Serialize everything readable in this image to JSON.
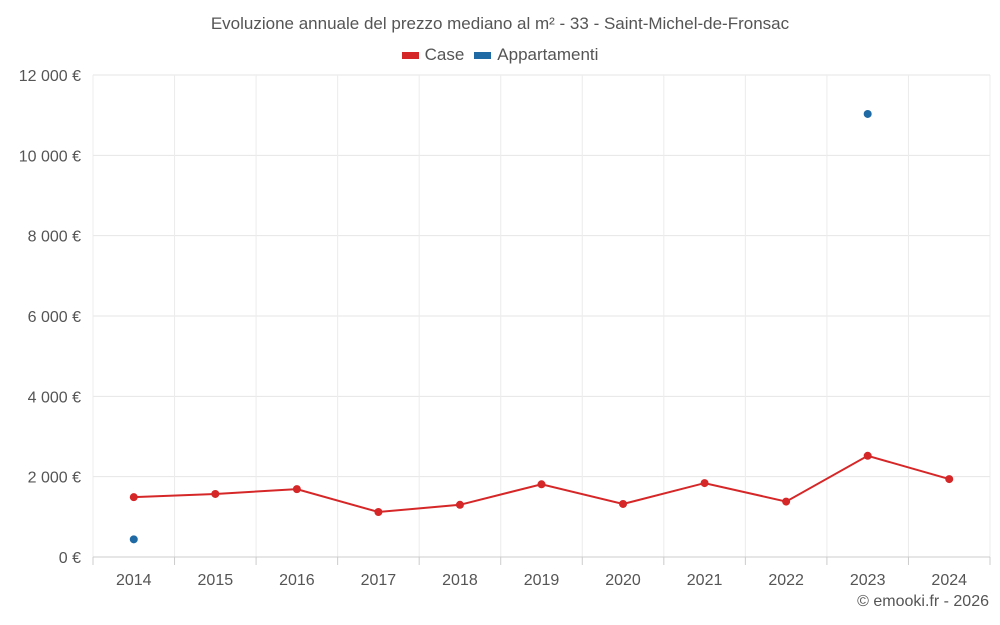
{
  "chart_data": {
    "type": "line",
    "title": "Evoluzione annuale del prezzo mediano al m² - 33 - Saint-Michel-de-Fronsac",
    "categories": [
      "2014",
      "2015",
      "2016",
      "2017",
      "2018",
      "2019",
      "2020",
      "2021",
      "2022",
      "2023",
      "2024"
    ],
    "series": [
      {
        "name": "Case",
        "color": "#d62728",
        "values": [
          1490,
          1570,
          1690,
          1120,
          1300,
          1810,
          1320,
          1840,
          1380,
          2520,
          1940
        ]
      },
      {
        "name": "Appartamenti",
        "color": "#1f6aa5",
        "values": [
          440,
          null,
          null,
          null,
          null,
          null,
          null,
          null,
          null,
          11030,
          null
        ]
      }
    ],
    "ylim": [
      0,
      12000
    ],
    "yticks": [
      0,
      2000,
      4000,
      6000,
      8000,
      10000,
      12000
    ],
    "ytick_labels": [
      "0 €",
      "2 000 €",
      "4 000 €",
      "6 000 €",
      "8 000 €",
      "10 000 €",
      "12 000 €"
    ],
    "xlabel": "",
    "ylabel": "",
    "grid": true,
    "legend_position": "top-center"
  },
  "credit": "© emooki.fr - 2026"
}
